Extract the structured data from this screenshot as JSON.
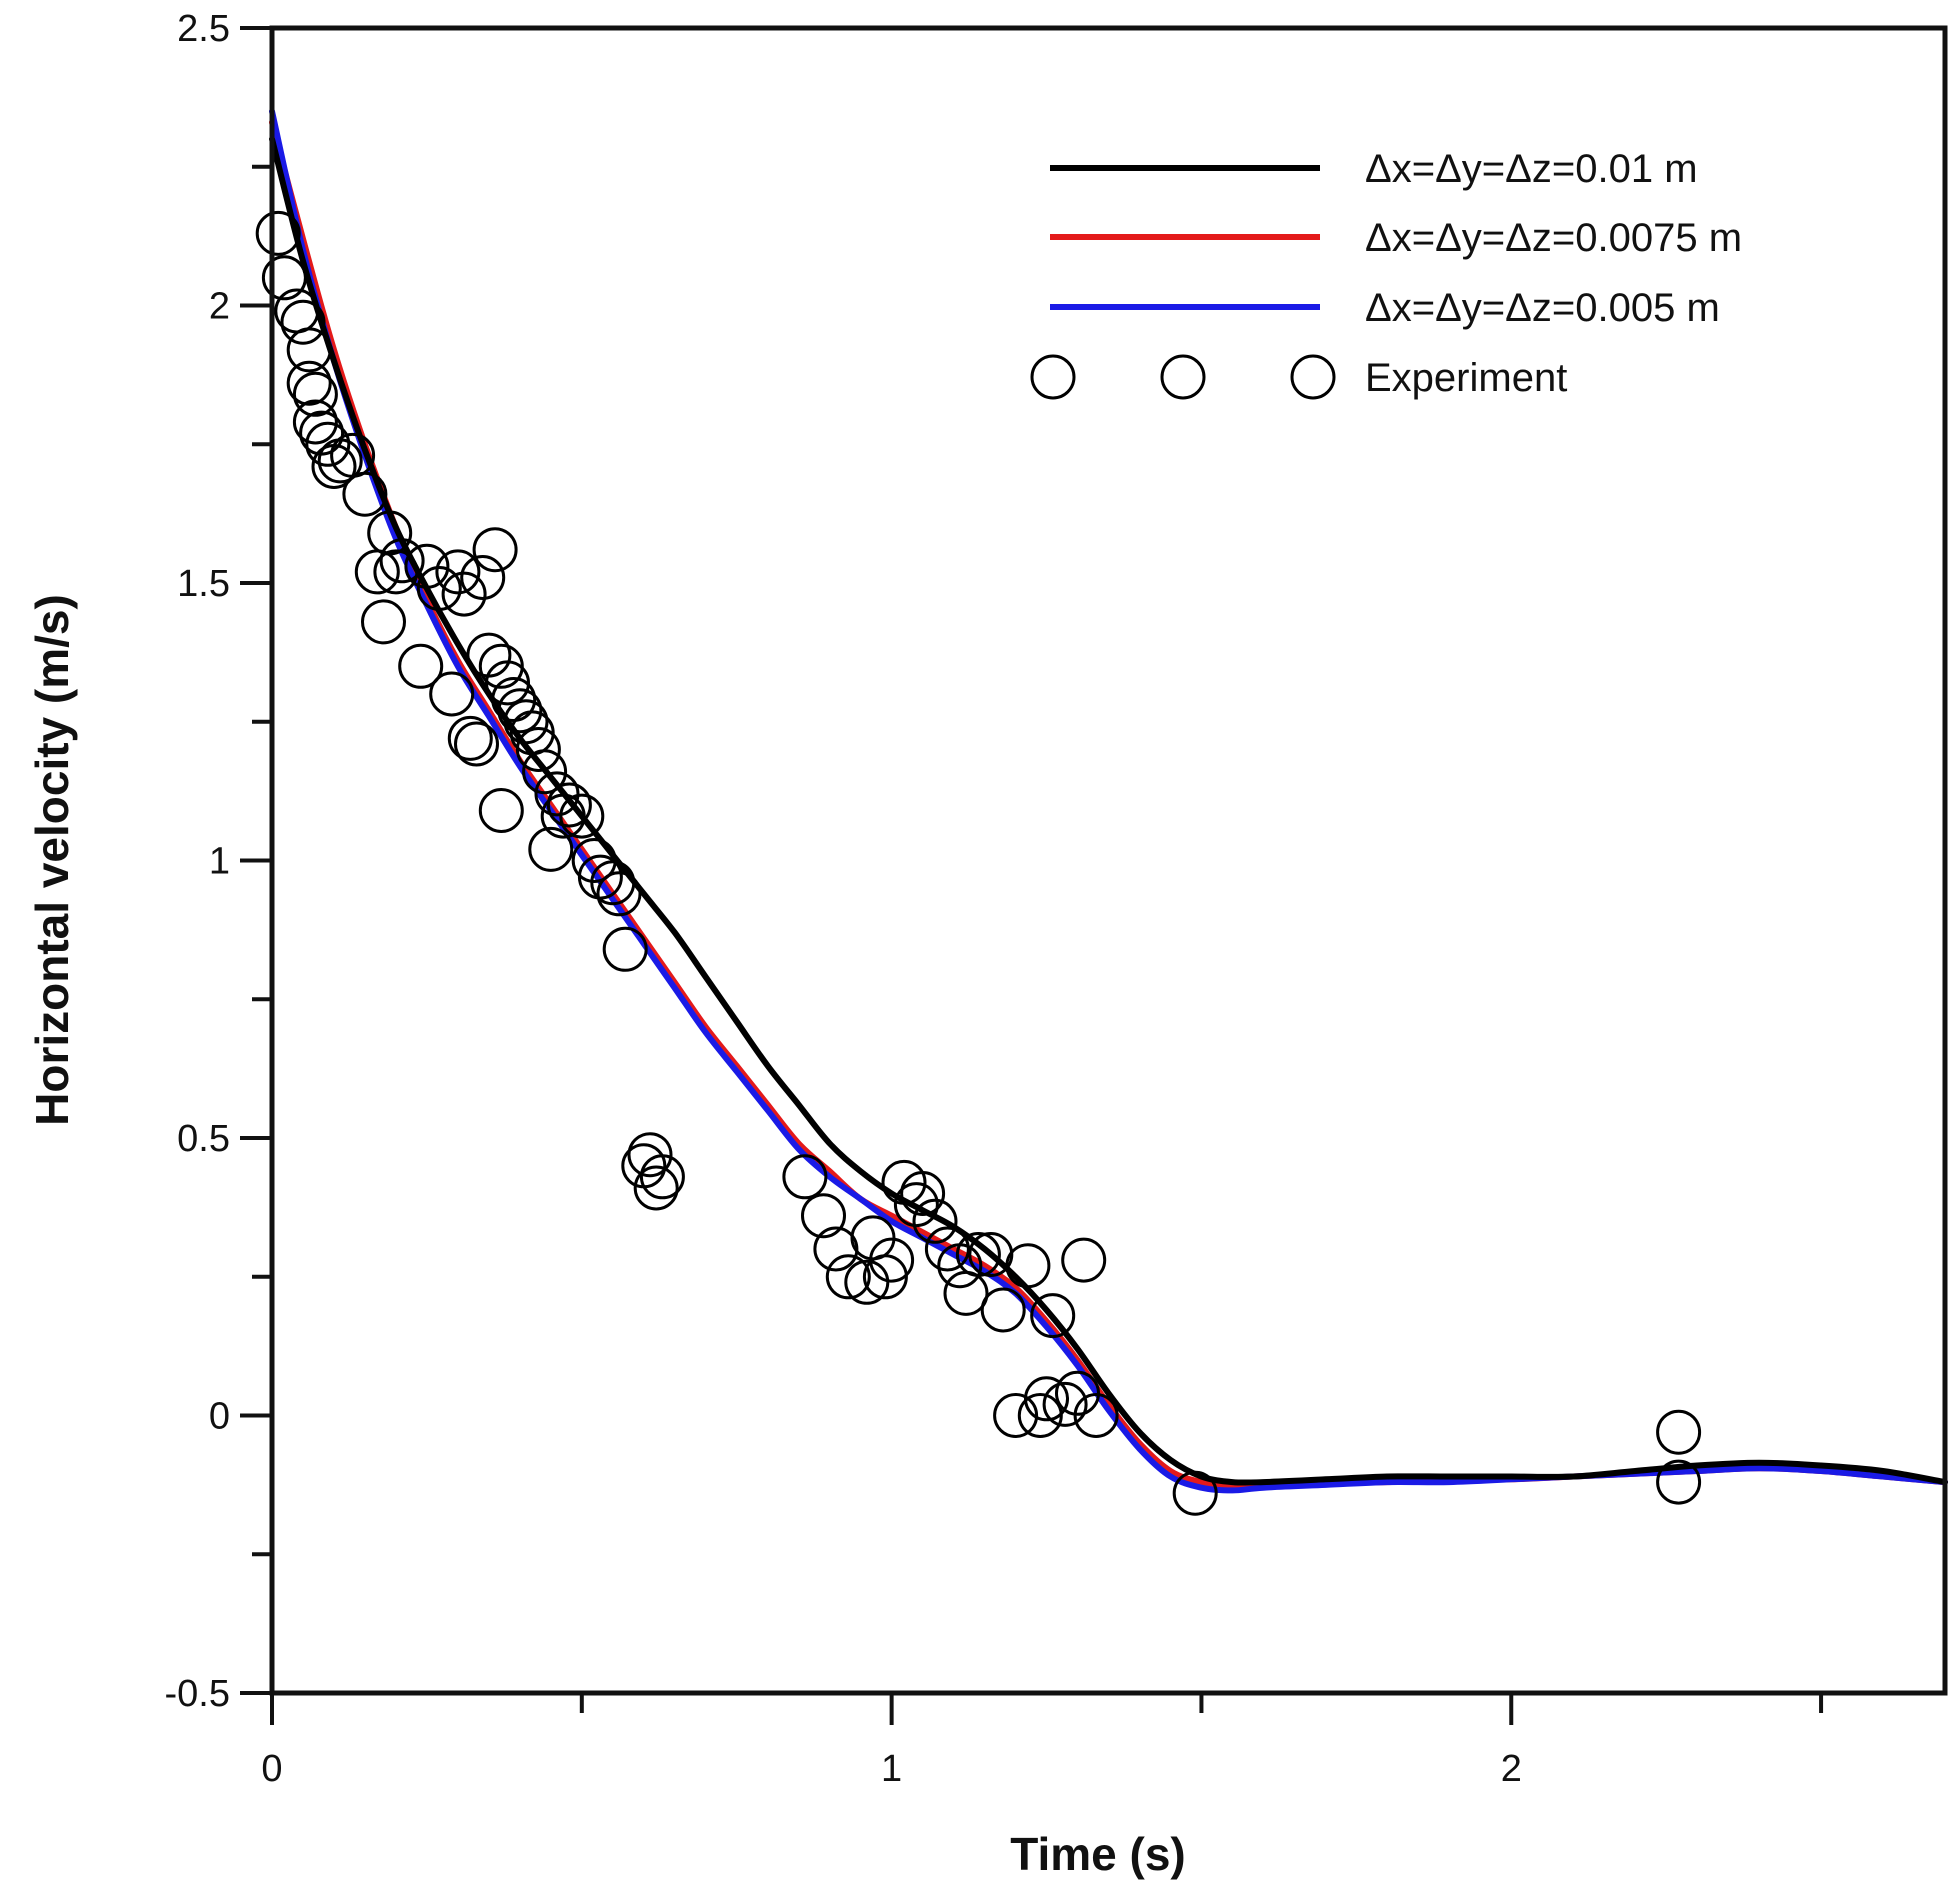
{
  "chart_data": {
    "type": "line",
    "title": "",
    "xlabel": "Time (s)",
    "ylabel": "Horizontal velocity (m/s)",
    "xlim": [
      0,
      2.7
    ],
    "ylim": [
      -0.5,
      2.5
    ],
    "x_ticks_major": [
      0,
      1,
      2
    ],
    "x_ticks_minor": [
      0.5,
      1.5,
      2.5
    ],
    "y_ticks_major": [
      -0.5,
      0,
      0.5,
      1,
      1.5,
      2,
      2.5
    ],
    "y_ticks_minor": [
      -0.25,
      0.25,
      0.75,
      1.25,
      1.75,
      2.25
    ],
    "x_tick_labels": [
      "0",
      "1",
      "2"
    ],
    "y_tick_labels": [
      "-0.5",
      "0",
      "0.5",
      "1",
      "1.5",
      "2",
      "2.5"
    ],
    "grid": false,
    "legend_position": "top-right",
    "series": [
      {
        "name": "Δx=Δy=Δz=0.01 m",
        "color": "#000000",
        "style": "line",
        "x": [
          0,
          0.05,
          0.1,
          0.15,
          0.2,
          0.25,
          0.3,
          0.35,
          0.4,
          0.45,
          0.5,
          0.55,
          0.6,
          0.65,
          0.7,
          0.75,
          0.8,
          0.85,
          0.9,
          0.95,
          1.0,
          1.05,
          1.1,
          1.15,
          1.2,
          1.25,
          1.3,
          1.35,
          1.4,
          1.45,
          1.5,
          1.55,
          1.6,
          1.7,
          1.8,
          1.9,
          2.0,
          2.1,
          2.2,
          2.3,
          2.4,
          2.5,
          2.6,
          2.7
        ],
        "y": [
          2.3,
          2.08,
          1.9,
          1.74,
          1.6,
          1.49,
          1.39,
          1.3,
          1.22,
          1.15,
          1.08,
          1.01,
          0.94,
          0.87,
          0.79,
          0.71,
          0.63,
          0.56,
          0.49,
          0.44,
          0.4,
          0.37,
          0.34,
          0.3,
          0.25,
          0.19,
          0.12,
          0.04,
          -0.03,
          -0.08,
          -0.11,
          -0.12,
          -0.12,
          -0.115,
          -0.11,
          -0.11,
          -0.11,
          -0.11,
          -0.1,
          -0.09,
          -0.085,
          -0.09,
          -0.1,
          -0.12
        ]
      },
      {
        "name": "Δx=Δy=Δz=0.0075 m",
        "color": "#e41a1a",
        "style": "line",
        "x": [
          0,
          0.05,
          0.1,
          0.15,
          0.2,
          0.25,
          0.3,
          0.35,
          0.4,
          0.45,
          0.5,
          0.55,
          0.6,
          0.65,
          0.7,
          0.75,
          0.8,
          0.85,
          0.9,
          0.95,
          1.0,
          1.05,
          1.1,
          1.15,
          1.2,
          1.25,
          1.3,
          1.35,
          1.4,
          1.45,
          1.5,
          1.55,
          1.6,
          1.7,
          1.8,
          1.9,
          2.0,
          2.1,
          2.2,
          2.3,
          2.4,
          2.5,
          2.6,
          2.7
        ],
        "y": [
          2.33,
          2.12,
          1.92,
          1.75,
          1.6,
          1.47,
          1.36,
          1.27,
          1.18,
          1.1,
          1.02,
          0.94,
          0.86,
          0.78,
          0.7,
          0.63,
          0.56,
          0.49,
          0.44,
          0.39,
          0.36,
          0.33,
          0.3,
          0.27,
          0.23,
          0.17,
          0.1,
          0.02,
          -0.05,
          -0.1,
          -0.12,
          -0.125,
          -0.125,
          -0.12,
          -0.12,
          -0.115,
          -0.115,
          -0.11,
          -0.105,
          -0.1,
          -0.095,
          -0.1,
          -0.11,
          -0.12
        ]
      },
      {
        "name": "Δx=Δy=Δz=0.005 m",
        "color": "#1a1ae6",
        "style": "line",
        "x": [
          0,
          0.05,
          0.1,
          0.15,
          0.2,
          0.25,
          0.3,
          0.35,
          0.4,
          0.45,
          0.5,
          0.55,
          0.6,
          0.65,
          0.7,
          0.75,
          0.8,
          0.85,
          0.9,
          0.95,
          1.0,
          1.05,
          1.1,
          1.15,
          1.2,
          1.25,
          1.3,
          1.35,
          1.4,
          1.45,
          1.5,
          1.55,
          1.6,
          1.7,
          1.8,
          1.9,
          2.0,
          2.1,
          2.2,
          2.3,
          2.4,
          2.5,
          2.6,
          2.7
        ],
        "y": [
          2.35,
          2.1,
          1.9,
          1.73,
          1.58,
          1.46,
          1.35,
          1.26,
          1.17,
          1.09,
          1.01,
          0.93,
          0.85,
          0.77,
          0.69,
          0.62,
          0.55,
          0.48,
          0.43,
          0.39,
          0.35,
          0.32,
          0.29,
          0.26,
          0.22,
          0.16,
          0.09,
          0.01,
          -0.06,
          -0.11,
          -0.13,
          -0.135,
          -0.13,
          -0.125,
          -0.12,
          -0.12,
          -0.115,
          -0.11,
          -0.105,
          -0.1,
          -0.095,
          -0.1,
          -0.11,
          -0.12
        ]
      },
      {
        "name": "Experiment",
        "color": "#000000",
        "style": "marker",
        "x": [
          0.01,
          0.02,
          0.04,
          0.05,
          0.06,
          0.06,
          0.07,
          0.07,
          0.08,
          0.09,
          0.1,
          0.11,
          0.13,
          0.15,
          0.17,
          0.18,
          0.19,
          0.2,
          0.21,
          0.24,
          0.25,
          0.27,
          0.29,
          0.3,
          0.31,
          0.32,
          0.33,
          0.34,
          0.35,
          0.36,
          0.37,
          0.37,
          0.38,
          0.39,
          0.4,
          0.41,
          0.42,
          0.43,
          0.44,
          0.45,
          0.46,
          0.47,
          0.48,
          0.5,
          0.52,
          0.53,
          0.55,
          0.56,
          0.57,
          0.6,
          0.61,
          0.62,
          0.63,
          0.86,
          0.89,
          0.91,
          0.93,
          0.96,
          0.97,
          0.99,
          1.0,
          1.02,
          1.04,
          1.05,
          1.07,
          1.09,
          1.11,
          1.12,
          1.14,
          1.16,
          1.18,
          1.2,
          1.22,
          1.24,
          1.25,
          1.26,
          1.28,
          1.3,
          1.31,
          1.33,
          1.49,
          2.27,
          2.27
        ],
        "y": [
          2.13,
          2.05,
          1.99,
          1.97,
          1.92,
          1.86,
          1.84,
          1.79,
          1.77,
          1.75,
          1.71,
          1.72,
          1.73,
          1.66,
          1.52,
          1.43,
          1.59,
          1.52,
          1.54,
          1.35,
          1.53,
          1.49,
          1.3,
          1.52,
          1.48,
          1.22,
          1.21,
          1.51,
          1.37,
          1.56,
          1.35,
          1.09,
          1.32,
          1.29,
          1.27,
          1.25,
          1.23,
          1.2,
          1.16,
          1.02,
          1.12,
          1.08,
          1.1,
          1.08,
          1.0,
          0.97,
          0.96,
          0.94,
          0.84,
          0.45,
          0.47,
          0.41,
          0.43,
          0.43,
          0.36,
          0.3,
          0.25,
          0.24,
          0.32,
          0.25,
          0.28,
          0.42,
          0.38,
          0.4,
          0.35,
          0.3,
          0.27,
          0.22,
          0.29,
          0.29,
          0.19,
          0.0,
          0.27,
          0.0,
          0.03,
          0.18,
          0.02,
          0.04,
          0.28,
          0.0,
          -0.14,
          -0.03,
          -0.12
        ]
      }
    ]
  }
}
